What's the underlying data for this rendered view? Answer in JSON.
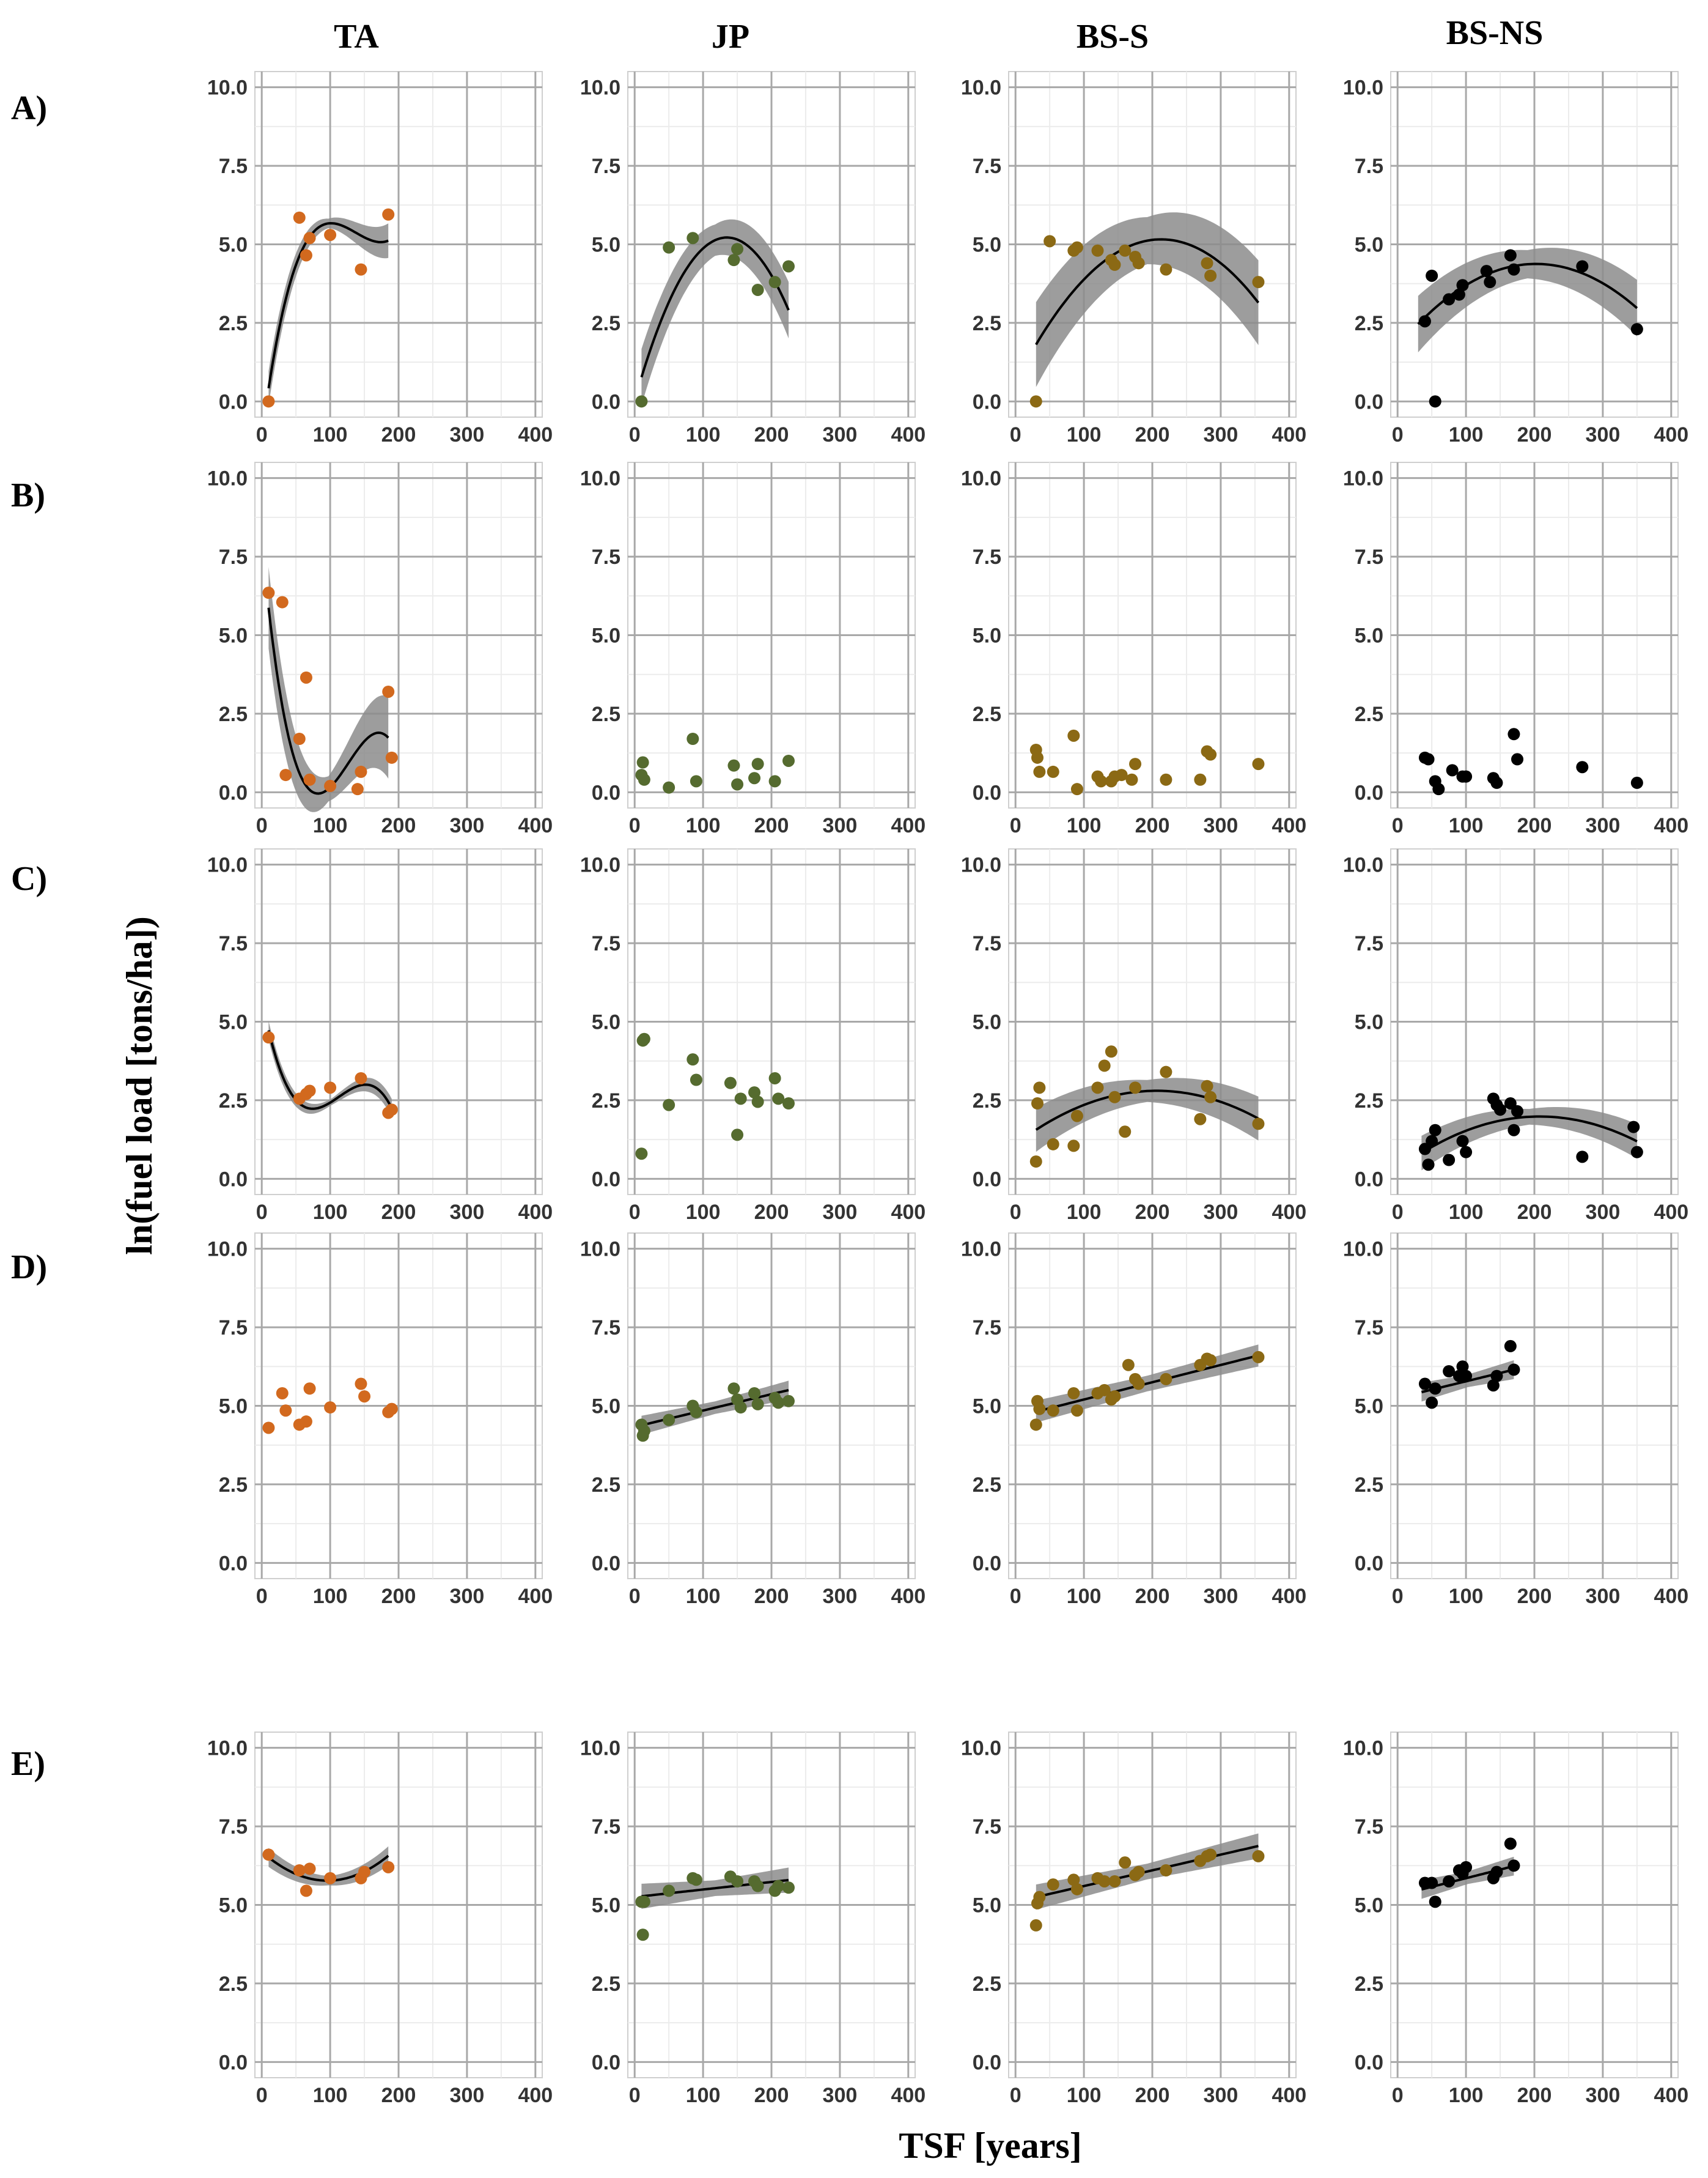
{
  "figure": {
    "x_axis_title": "TSF [years]",
    "y_axis_title": "ln(fuel load [tons/ha])",
    "column_titles": [
      "TA",
      "JP",
      "BS-S",
      "BS-NS"
    ],
    "row_labels": [
      "A)",
      "B)",
      "C)",
      "D)",
      "E)"
    ],
    "colors": {
      "TA": "#d2691e",
      "JP": "#556b2f",
      "BS-S": "#8b6914",
      "BS-NS": "#000000",
      "band": "#8c8c8c",
      "grid": "#a8a8a8",
      "fit": "#000000"
    }
  },
  "chart_data": {
    "type": "scatter",
    "title": "",
    "xlabel": "TSF [years]",
    "ylabel": "ln(fuel load [tons/ha])",
    "xlim": [
      -10,
      410
    ],
    "ylim": [
      -0.5,
      10.5
    ],
    "xticks": [
      "0",
      "100",
      "200",
      "300",
      "400"
    ],
    "yticks": [
      "0.0",
      "2.5",
      "5.0",
      "7.5",
      "10.0"
    ],
    "panels": [
      {
        "row": "A)",
        "col": "TA",
        "x": [
          10,
          55,
          65,
          70,
          100,
          145,
          185
        ],
        "y": [
          0,
          5.85,
          4.65,
          5.2,
          5.3,
          4.2,
          5.95
        ],
        "fit": {
          "kind": "poly",
          "coef": [
            -1.1186,
            0.1664,
            -0.0013,
            3.15e-06
          ],
          "range": [
            10,
            185
          ],
          "band": [
            0.15,
            0.55
          ]
        }
      },
      {
        "row": "A)",
        "col": "JP",
        "x": [
          10,
          50,
          85,
          145,
          150,
          180,
          205,
          225
        ],
        "y": [
          0,
          4.9,
          5.2,
          4.5,
          4.85,
          3.55,
          3.8,
          4.3
        ],
        "fit": {
          "kind": "poly",
          "coef": [
            0.0305,
            0.0769,
            -0.000285
          ],
          "range": [
            10,
            225
          ],
          "band": [
            0.5,
            0.9
          ]
        }
      },
      {
        "row": "A)",
        "col": "BS-S",
        "x": [
          30,
          50,
          85,
          90,
          120,
          140,
          145,
          160,
          175,
          180,
          220,
          280,
          285,
          355
        ],
        "y": [
          0,
          5.1,
          4.8,
          4.9,
          4.8,
          4.5,
          4.35,
          4.8,
          4.6,
          4.4,
          4.2,
          4.4,
          4.0,
          3.8
        ],
        "fit": {
          "kind": "poly",
          "coef": [
            0.6215,
            0.0426,
            -0.0001
          ],
          "range": [
            30,
            355
          ],
          "band": [
            0.75,
            1.35
          ]
        }
      },
      {
        "row": "A)",
        "col": "BS-NS",
        "x": [
          40,
          50,
          55,
          75,
          90,
          95,
          130,
          135,
          165,
          170,
          270,
          350
        ],
        "y": [
          2.55,
          4.0,
          0,
          3.25,
          3.4,
          3.7,
          4.15,
          3.8,
          4.65,
          4.2,
          4.3,
          2.3
        ],
        "fit": {
          "kind": "poly",
          "coef": [
            1.7365,
            0.0261,
            -6.45e-05
          ],
          "range": [
            30,
            350
          ],
          "band": [
            0.45,
            0.9
          ]
        }
      },
      {
        "row": "B)",
        "col": "TA",
        "x": [
          10,
          30,
          35,
          55,
          65,
          70,
          100,
          140,
          145,
          185,
          190
        ],
        "y": [
          6.35,
          6.05,
          0.55,
          1.7,
          3.65,
          0.4,
          0.2,
          0.1,
          0.65,
          3.2,
          1.1
        ],
        "fit": {
          "kind": "poly",
          "coef": [
            8.0,
            -0.2331,
            0.0021,
            -5.53e-06
          ],
          "range": [
            10,
            185
          ],
          "band": [
            0.4,
            1.3
          ]
        }
      },
      {
        "row": "B)",
        "col": "JP",
        "x": [
          10,
          12,
          14,
          50,
          85,
          90,
          145,
          150,
          175,
          180,
          205,
          225
        ],
        "y": [
          0.55,
          0.95,
          0.4,
          0.15,
          1.7,
          0.35,
          0.85,
          0.25,
          0.45,
          0.9,
          0.35,
          1.0
        ],
        "fit": null
      },
      {
        "row": "B)",
        "col": "BS-S",
        "x": [
          30,
          32,
          35,
          55,
          85,
          90,
          120,
          125,
          140,
          145,
          155,
          170,
          175,
          220,
          270,
          280,
          285,
          355
        ],
        "y": [
          1.35,
          1.1,
          0.65,
          0.65,
          1.8,
          0.1,
          0.5,
          0.35,
          0.35,
          0.5,
          0.55,
          0.4,
          0.9,
          0.4,
          0.4,
          1.3,
          1.2,
          0.9
        ],
        "fit": null
      },
      {
        "row": "B)",
        "col": "BS-NS",
        "x": [
          40,
          45,
          55,
          60,
          80,
          95,
          100,
          140,
          145,
          170,
          175,
          270,
          350
        ],
        "y": [
          1.1,
          1.05,
          0.35,
          0.1,
          0.7,
          0.5,
          0.5,
          0.45,
          0.3,
          1.85,
          1.05,
          0.8,
          0.3
        ],
        "fit": null
      },
      {
        "row": "C)",
        "col": "TA",
        "x": [
          10,
          55,
          65,
          70,
          100,
          145,
          185,
          190
        ],
        "y": [
          4.5,
          2.55,
          2.7,
          2.8,
          2.9,
          3.2,
          2.1,
          2.2
        ],
        "fit": {
          "kind": "poly",
          "coef": [
            5.7452,
            -0.1129,
            0.00113,
            -3.33e-06
          ],
          "range": [
            10,
            190
          ],
          "band": [
            0.1,
            0.3
          ]
        }
      },
      {
        "row": "C)",
        "col": "JP",
        "x": [
          10,
          12,
          14,
          50,
          85,
          90,
          140,
          150,
          155,
          175,
          180,
          205,
          210,
          225
        ],
        "y": [
          0.8,
          4.4,
          4.45,
          2.35,
          3.8,
          3.15,
          3.05,
          1.4,
          2.55,
          2.75,
          2.45,
          3.2,
          2.55,
          2.4
        ],
        "fit": null
      },
      {
        "row": "C)",
        "col": "BS-S",
        "x": [
          30,
          32,
          35,
          55,
          85,
          90,
          120,
          130,
          140,
          145,
          160,
          175,
          220,
          270,
          280,
          285,
          355
        ],
        "y": [
          0.55,
          2.4,
          2.9,
          1.1,
          1.05,
          2.0,
          2.9,
          3.6,
          4.05,
          2.6,
          1.5,
          2.9,
          3.4,
          1.9,
          2.95,
          2.6,
          1.75
        ],
        "fit": {
          "kind": "poly",
          "coef": [
            1.1,
            0.0165,
            -4e-05
          ],
          "range": [
            30,
            355
          ],
          "band": [
            0.35,
            0.7
          ]
        }
      },
      {
        "row": "C)",
        "col": "BS-NS",
        "x": [
          40,
          45,
          50,
          55,
          75,
          95,
          100,
          140,
          145,
          150,
          165,
          170,
          175,
          270,
          345,
          350
        ],
        "y": [
          0.95,
          0.45,
          1.2,
          1.55,
          0.6,
          1.2,
          0.85,
          2.55,
          2.35,
          2.2,
          2.4,
          1.55,
          2.15,
          0.7,
          1.65,
          0.85
        ],
        "fit": {
          "kind": "poly",
          "coef": [
            0.3,
            0.0162,
            -3.9e-05
          ],
          "range": [
            35,
            350
          ],
          "band": [
            0.25,
            0.55
          ]
        }
      },
      {
        "row": "D)",
        "col": "TA",
        "x": [
          10,
          30,
          35,
          55,
          65,
          70,
          100,
          145,
          150,
          185,
          190
        ],
        "y": [
          4.3,
          5.4,
          4.85,
          4.4,
          4.5,
          5.55,
          4.95,
          5.7,
          5.3,
          4.8,
          4.9
        ],
        "fit": null
      },
      {
        "row": "D)",
        "col": "JP",
        "x": [
          10,
          12,
          14,
          50,
          85,
          90,
          145,
          150,
          155,
          175,
          180,
          205,
          210,
          225
        ],
        "y": [
          4.4,
          4.05,
          4.2,
          4.55,
          5.0,
          4.8,
          5.55,
          5.2,
          4.95,
          5.4,
          5.05,
          5.25,
          5.1,
          5.15
        ],
        "fit": {
          "kind": "poly",
          "coef": [
            4.33,
            0.0052
          ],
          "range": [
            10,
            225
          ],
          "band": [
            0.2,
            0.3
          ]
        }
      },
      {
        "row": "D)",
        "col": "BS-S",
        "x": [
          30,
          32,
          35,
          55,
          85,
          90,
          120,
          130,
          140,
          145,
          165,
          175,
          180,
          220,
          270,
          280,
          285,
          355
        ],
        "y": [
          4.4,
          5.15,
          4.9,
          4.85,
          5.4,
          4.85,
          5.4,
          5.5,
          5.2,
          5.3,
          6.3,
          5.85,
          5.7,
          5.85,
          6.3,
          6.5,
          6.45,
          6.55
        ],
        "fit": {
          "kind": "poly",
          "coef": [
            4.65,
            0.0055
          ],
          "range": [
            30,
            355
          ],
          "band": [
            0.25,
            0.35
          ]
        }
      },
      {
        "row": "D)",
        "col": "BS-NS",
        "x": [
          40,
          50,
          55,
          75,
          90,
          95,
          100,
          140,
          145,
          165,
          170
        ],
        "y": [
          5.7,
          5.1,
          5.55,
          6.1,
          5.95,
          6.25,
          5.95,
          5.65,
          5.95,
          6.9,
          6.15
        ],
        "fit": {
          "kind": "poly",
          "coef": [
            5.25,
            0.0053
          ],
          "range": [
            35,
            170
          ],
          "band": [
            0.2,
            0.3
          ]
        }
      },
      {
        "row": "E)",
        "col": "TA",
        "x": [
          10,
          55,
          65,
          70,
          100,
          145,
          150,
          185
        ],
        "y": [
          6.6,
          6.1,
          5.45,
          6.15,
          5.85,
          5.85,
          6.05,
          6.2
        ],
        "fit": {
          "kind": "poly",
          "coef": [
            6.6942,
            -0.0192,
            0.0001
          ],
          "range": [
            10,
            185
          ],
          "band": [
            0.15,
            0.3
          ]
        }
      },
      {
        "row": "E)",
        "col": "JP",
        "x": [
          10,
          12,
          14,
          50,
          85,
          90,
          140,
          150,
          175,
          180,
          205,
          210,
          225
        ],
        "y": [
          5.1,
          4.05,
          5.1,
          5.45,
          5.85,
          5.8,
          5.9,
          5.75,
          5.75,
          5.6,
          5.45,
          5.6,
          5.55
        ],
        "fit": {
          "kind": "poly",
          "coef": [
            5.25,
            0.0024
          ],
          "range": [
            10,
            225
          ],
          "band": [
            0.25,
            0.4
          ]
        }
      },
      {
        "row": "E)",
        "col": "BS-S",
        "x": [
          30,
          32,
          35,
          55,
          85,
          90,
          120,
          130,
          145,
          160,
          175,
          180,
          220,
          270,
          280,
          285,
          355
        ],
        "y": [
          4.35,
          5.05,
          5.25,
          5.65,
          5.8,
          5.5,
          5.85,
          5.75,
          5.75,
          6.35,
          5.95,
          6.05,
          6.1,
          6.4,
          6.55,
          6.6,
          6.55
        ],
        "fit": {
          "kind": "poly",
          "coef": [
            5.1,
            0.005
          ],
          "range": [
            30,
            355
          ],
          "band": [
            0.25,
            0.4
          ]
        }
      },
      {
        "row": "E)",
        "col": "BS-NS",
        "x": [
          40,
          50,
          55,
          75,
          90,
          95,
          100,
          140,
          145,
          165,
          170
        ],
        "y": [
          5.7,
          5.7,
          5.1,
          5.75,
          6.1,
          6.0,
          6.2,
          5.85,
          6.05,
          6.95,
          6.25
        ],
        "fit": {
          "kind": "poly",
          "coef": [
            5.3,
            0.0055
          ],
          "range": [
            35,
            170
          ],
          "band": [
            0.2,
            0.3
          ]
        }
      }
    ]
  }
}
